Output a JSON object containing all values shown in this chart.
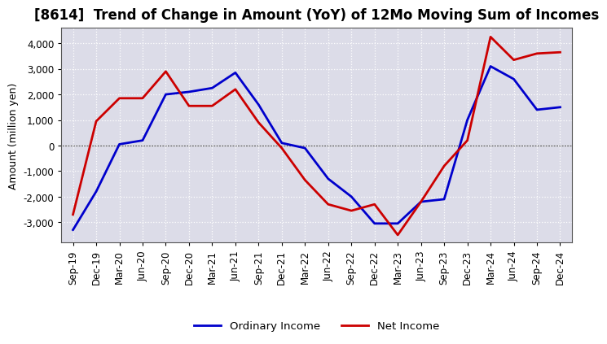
{
  "title": "[8614]  Trend of Change in Amount (YoY) of 12Mo Moving Sum of Incomes",
  "ylabel": "Amount (million yen)",
  "background_color": "#ffffff",
  "plot_background_color": "#dcdce8",
  "grid_color": "#ffffff",
  "x_labels": [
    "Sep-19",
    "Dec-19",
    "Mar-20",
    "Jun-20",
    "Sep-20",
    "Dec-20",
    "Mar-21",
    "Jun-21",
    "Sep-21",
    "Dec-21",
    "Mar-22",
    "Jun-22",
    "Sep-22",
    "Dec-22",
    "Mar-23",
    "Jun-23",
    "Sep-23",
    "Dec-23",
    "Mar-24",
    "Jun-24",
    "Sep-24",
    "Dec-24"
  ],
  "ordinary_income": [
    -3300,
    -1800,
    50,
    200,
    2000,
    2100,
    2250,
    2850,
    1600,
    100,
    -100,
    -1300,
    -2000,
    -3050,
    -3050,
    -2200,
    -2100,
    1000,
    3100,
    2600,
    1400,
    1500
  ],
  "net_income": [
    -2700,
    950,
    1850,
    1850,
    2900,
    1550,
    1550,
    2200,
    900,
    -100,
    -1350,
    -2300,
    -2550,
    -2300,
    -3500,
    -2200,
    -800,
    200,
    4250,
    3350,
    3600,
    3650
  ],
  "ordinary_color": "#0000cc",
  "net_color": "#cc0000",
  "line_width": 2.0,
  "ylim": [
    -3800,
    4600
  ],
  "yticks": [
    -3000,
    -2000,
    -1000,
    0,
    1000,
    2000,
    3000,
    4000
  ],
  "legend_labels": [
    "Ordinary Income",
    "Net Income"
  ],
  "title_fontsize": 12,
  "axis_fontsize": 9,
  "tick_fontsize": 8.5
}
